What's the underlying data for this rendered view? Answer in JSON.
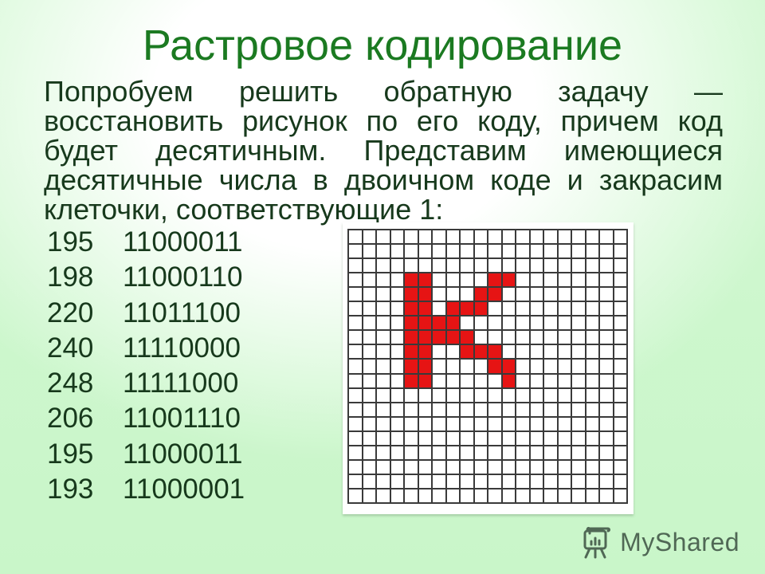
{
  "title": "Растровое кодирование",
  "paragraph": {
    "lines": [
      "Попробуем решить обратную задачу —",
      "восстановить рисунок по его коду, причем код",
      "будет десятичным. Представим имеющиеся",
      "десятичные числа в двоичном коде и закрасим",
      "клеточки, соответствующие 1:"
    ]
  },
  "code_list": [
    {
      "dec": "195",
      "bin": "11000011"
    },
    {
      "dec": "198",
      "bin": "11000110"
    },
    {
      "dec": "220",
      "bin": "11011100"
    },
    {
      "dec": "240",
      "bin": "11110000"
    },
    {
      "dec": "248",
      "bin": "11111000"
    },
    {
      "dec": "206",
      "bin": "11001110"
    },
    {
      "dec": "195",
      "bin": "11000011"
    },
    {
      "dec": "193",
      "bin": "11000001"
    }
  ],
  "grid": {
    "rows": 19,
    "cols": 20,
    "letter_origin": {
      "row": 3,
      "col": 4
    },
    "letter_rows": [
      "11000011",
      "11000110",
      "11011100",
      "11110000",
      "11111000",
      "11001110",
      "11000011",
      "11000001"
    ]
  },
  "watermark": {
    "text": "MyShared"
  },
  "colors": {
    "title-green": "#1b7a21",
    "text-green": "#17391c",
    "pixel-red": "#e61414",
    "grid-line": "#3a3a3a",
    "wm-color": "#465c4c"
  }
}
